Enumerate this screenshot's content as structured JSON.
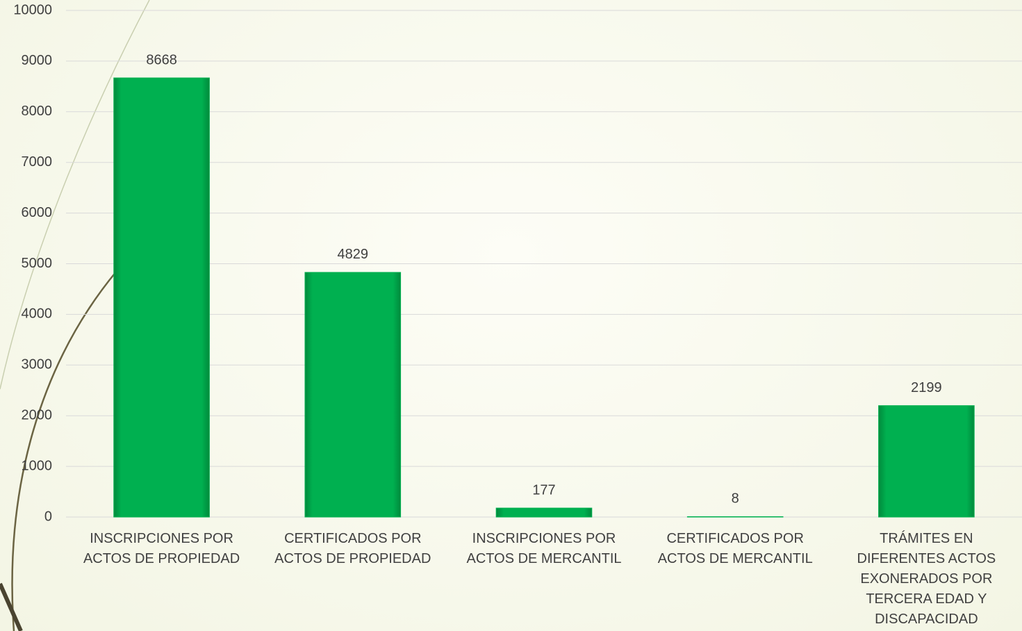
{
  "chart_data": {
    "type": "bar",
    "categories": [
      "INSCRIPCIONES POR ACTOS DE PROPIEDAD",
      "CERTIFICADOS POR ACTOS DE PROPIEDAD",
      "INSCRIPCIONES POR ACTOS DE MERCANTIL",
      "CERTIFICADOS POR ACTOS DE MERCANTIL",
      "TRÁMITES EN DIFERENTES ACTOS EXONERADOS POR TERCERA EDAD Y DISCAPACIDAD"
    ],
    "values": [
      8668,
      4829,
      177,
      8,
      2199
    ],
    "color": "#00b050",
    "ylim": [
      0,
      10000
    ],
    "yticks": [
      0,
      1000,
      2000,
      3000,
      4000,
      5000,
      6000,
      7000,
      8000,
      9000,
      10000
    ],
    "grid": true
  }
}
